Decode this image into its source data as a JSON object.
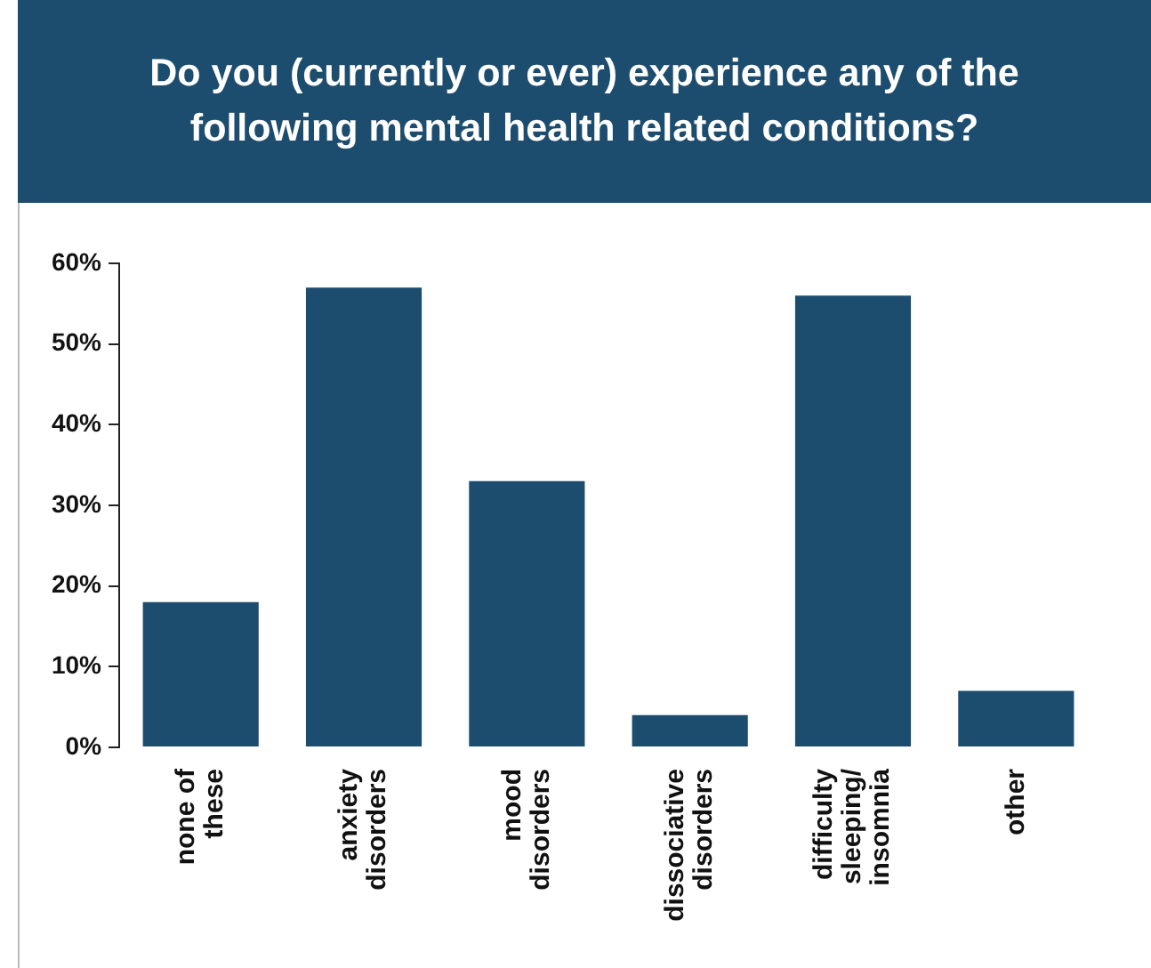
{
  "chart_data": {
    "type": "bar",
    "title": "Do you (currently or ever) experience any of the following mental health related conditions?",
    "categories": [
      "none of\nthese",
      "anxiety\ndisorders",
      "mood\ndisorders",
      "dissociative\ndisorders",
      "difficulty\nsleeping/\ninsomnia",
      "other"
    ],
    "values": [
      18,
      57,
      33,
      4,
      56,
      7
    ],
    "color": "#1d4d6e",
    "ylim": [
      0,
      60
    ],
    "yticks": [
      {
        "value": 0,
        "label": "0%"
      },
      {
        "value": 10,
        "label": "10%"
      },
      {
        "value": 20,
        "label": "20%"
      },
      {
        "value": 30,
        "label": "30%"
      },
      {
        "value": 40,
        "label": "40%"
      },
      {
        "value": 50,
        "label": "50%"
      },
      {
        "value": 60,
        "label": "60%"
      }
    ],
    "grid": false,
    "legend": false
  }
}
